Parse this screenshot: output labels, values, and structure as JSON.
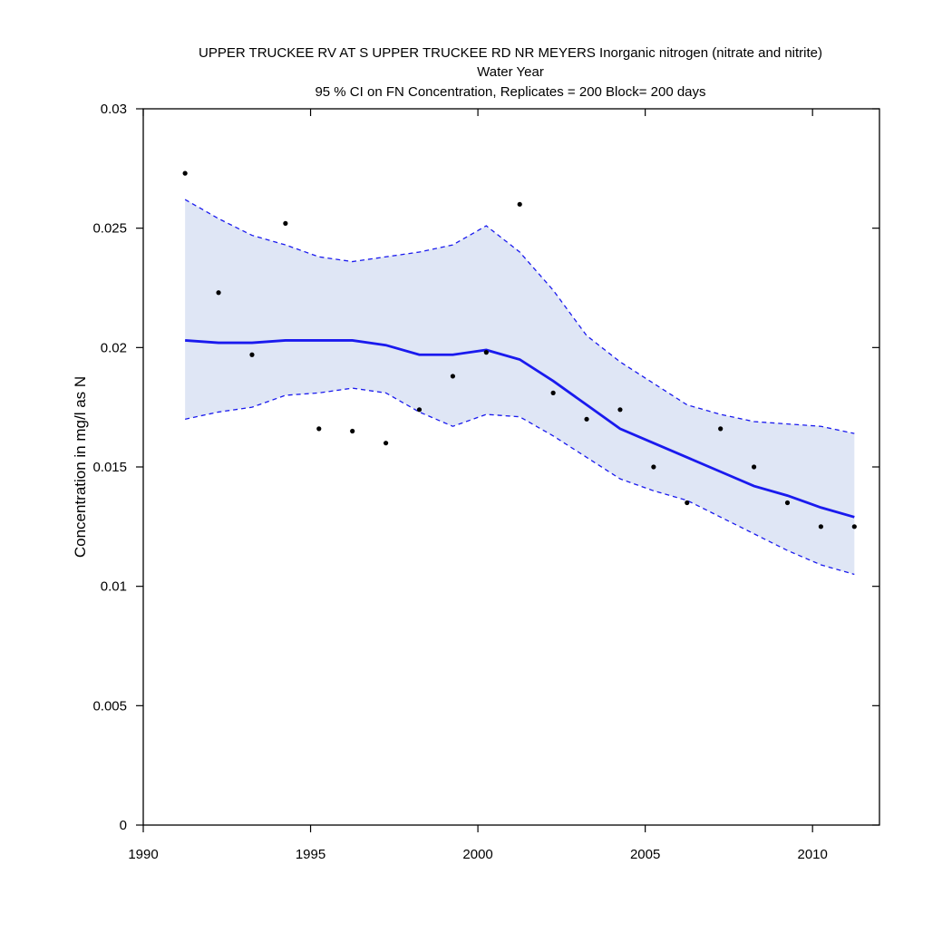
{
  "chart_data": {
    "type": "line",
    "title_lines": [
      "UPPER TRUCKEE RV AT S UPPER TRUCKEE RD NR MEYERS   Inorganic nitrogen (nitrate and nitrite)",
      "Water Year",
      "95 % CI on FN Concentration, Replicates = 200 Block= 200 days"
    ],
    "xlabel": "",
    "ylabel": "Concentration in mg/l as N",
    "xlim": [
      1990,
      2012
    ],
    "ylim": [
      0,
      0.03
    ],
    "x_ticks": [
      1990,
      1995,
      2000,
      2005,
      2010
    ],
    "x_tick_labels": [
      "1990",
      "1995",
      "2000",
      "2005",
      "2010"
    ],
    "y_ticks": [
      0,
      0.005,
      0.01,
      0.015,
      0.02,
      0.025,
      0.03
    ],
    "y_tick_labels": [
      "0",
      "0.005",
      "0.01",
      "0.015",
      "0.02",
      "0.025",
      "0.03"
    ],
    "grid": false,
    "colors": {
      "line": "#1a1aee",
      "band": "#dfe6f5",
      "points": "#000000"
    },
    "points": {
      "x": [
        1991.25,
        1992.25,
        1993.25,
        1994.25,
        1995.25,
        1996.25,
        1997.25,
        1998.25,
        1999.25,
        2000.25,
        2001.25,
        2002.25,
        2003.25,
        2004.25,
        2005.25,
        2006.25,
        2007.25,
        2008.25,
        2009.25,
        2010.25,
        2011.25
      ],
      "y": [
        0.0273,
        0.0223,
        0.0197,
        0.0252,
        0.0166,
        0.0165,
        0.016,
        0.0174,
        0.0188,
        0.0198,
        0.026,
        0.0181,
        0.017,
        0.0174,
        0.015,
        0.0135,
        0.0166,
        0.015,
        0.0135,
        0.0125,
        0.0125
      ]
    },
    "fn_line": {
      "x": [
        1991.25,
        1992.25,
        1993.25,
        1994.25,
        1995.25,
        1996.25,
        1997.25,
        1998.25,
        1999.25,
        2000.25,
        2001.25,
        2002.25,
        2003.25,
        2004.25,
        2005.25,
        2006.25,
        2007.25,
        2008.25,
        2009.25,
        2010.25,
        2011.25
      ],
      "y": [
        0.0203,
        0.0202,
        0.0202,
        0.0203,
        0.0203,
        0.0203,
        0.0201,
        0.0197,
        0.0197,
        0.0199,
        0.0195,
        0.0186,
        0.0176,
        0.0166,
        0.016,
        0.0154,
        0.0148,
        0.0142,
        0.0138,
        0.0133,
        0.0129
      ]
    },
    "ci_upper": [
      0.0262,
      0.0254,
      0.0247,
      0.0243,
      0.0238,
      0.0236,
      0.0238,
      0.024,
      0.0243,
      0.0251,
      0.024,
      0.0224,
      0.0205,
      0.0194,
      0.0185,
      0.0176,
      0.0172,
      0.0169,
      0.0168,
      0.0167,
      0.0164
    ],
    "ci_lower": [
      0.017,
      0.0173,
      0.0175,
      0.018,
      0.0181,
      0.0183,
      0.0181,
      0.0173,
      0.0167,
      0.0172,
      0.0171,
      0.0163,
      0.0154,
      0.0145,
      0.014,
      0.0136,
      0.0129,
      0.0122,
      0.0115,
      0.0109,
      0.0105
    ]
  }
}
